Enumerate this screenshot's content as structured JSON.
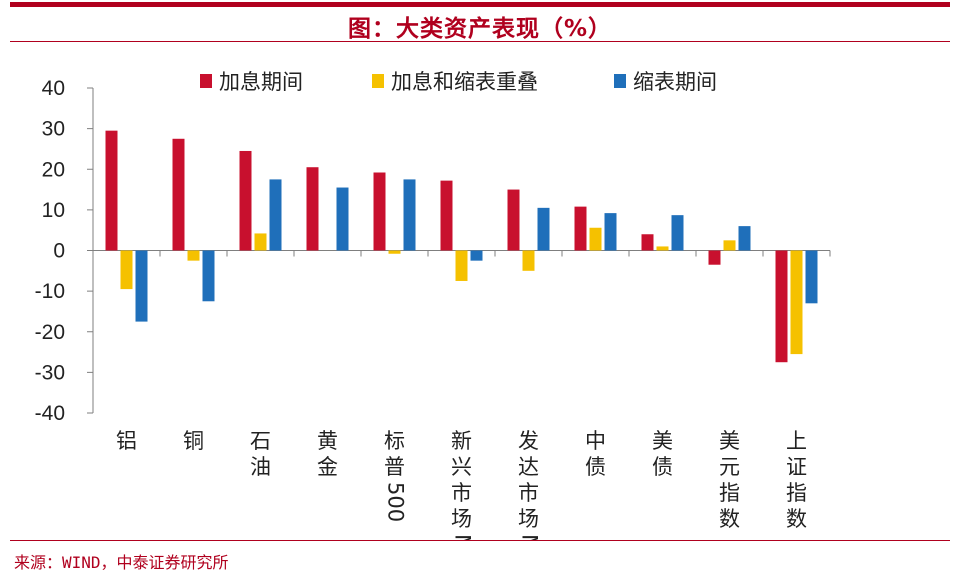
{
  "title": "图：大类资产表现（%）",
  "source": "来源：WIND，中泰证券研究所",
  "colors": {
    "accent": "#b0001e"
  },
  "chart_data": {
    "type": "bar",
    "categories": [
      "铝",
      "铜",
      "石油",
      "黄金",
      "标普500",
      "新兴市场MSCI",
      "发达市场MSCI",
      "中债",
      "美债",
      "美元指数",
      "上证指数"
    ],
    "category_lines": [
      [
        "铝"
      ],
      [
        "铜"
      ],
      [
        "石",
        "油"
      ],
      [
        "黄",
        "金"
      ],
      [
        "标",
        "普",
        "500"
      ],
      [
        "新",
        "兴",
        "市",
        "场",
        "MSCI"
      ],
      [
        "发",
        "达",
        "市",
        "场",
        "MSCI"
      ],
      [
        "中",
        "债"
      ],
      [
        "美",
        "债"
      ],
      [
        "美",
        "元",
        "指",
        "数"
      ],
      [
        "上",
        "证",
        "指",
        "数"
      ]
    ],
    "series": [
      {
        "name": "加息期间",
        "color": "#c8102e",
        "values": [
          29.5,
          27.5,
          24.5,
          20.5,
          19.2,
          17.2,
          15.0,
          10.8,
          4.0,
          -3.5,
          -27.5
        ]
      },
      {
        "name": "加息和缩表重叠",
        "color": "#f5c100",
        "values": [
          -9.5,
          -2.5,
          4.2,
          0.0,
          -0.8,
          -7.5,
          -5.0,
          5.6,
          1.0,
          2.5,
          -25.5
        ]
      },
      {
        "name": "缩表期间",
        "color": "#1f6fba",
        "values": [
          -17.5,
          -12.5,
          17.5,
          15.5,
          17.5,
          -2.5,
          10.5,
          9.2,
          8.7,
          6.0,
          -13.0
        ]
      }
    ],
    "ylim": [
      -40,
      40
    ],
    "yticks": [
      40,
      30,
      20,
      10,
      0,
      -10,
      -20,
      -30,
      -40
    ],
    "legend_position": "top"
  }
}
